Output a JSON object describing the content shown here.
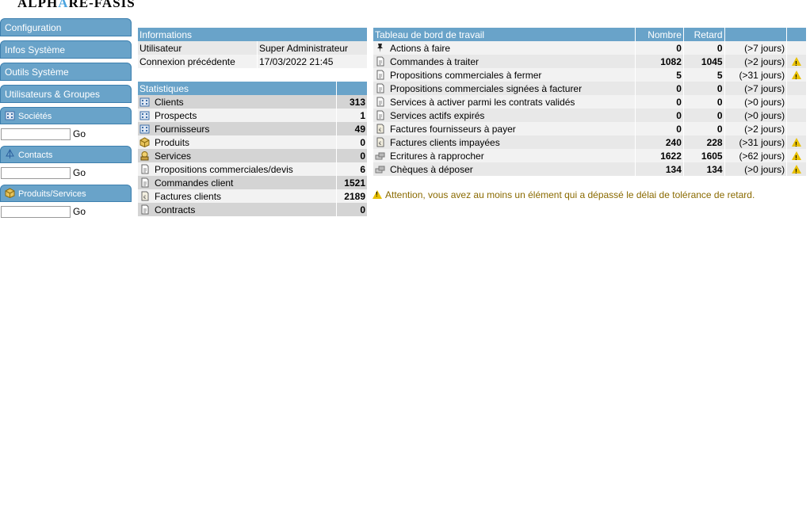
{
  "logo": {
    "part1": "ALPH",
    "part2": "A",
    "part3": "RE-FASIS"
  },
  "menu": {
    "configuration": "Configuration",
    "infos": "Infos Système",
    "outils": "Outils Système",
    "users": "Utilisateurs & Groupes",
    "societes": "Sociétés",
    "contacts": "Contacts",
    "produits": "Produits/Services",
    "go": "Go"
  },
  "info": {
    "header": "Informations",
    "user_label": "Utilisateur",
    "user_value": "Super Administrateur",
    "conn_label": "Connexion précédente",
    "conn_value": "17/03/2022 21:45"
  },
  "stats": {
    "header": "Statistiques",
    "rows": [
      {
        "label": "Clients",
        "value": "313",
        "icon": "building-icon"
      },
      {
        "label": "Prospects",
        "value": "1",
        "icon": "building-icon"
      },
      {
        "label": "Fournisseurs",
        "value": "49",
        "icon": "building-icon"
      },
      {
        "label": "Produits",
        "value": "0",
        "icon": "box-icon"
      },
      {
        "label": "Services",
        "value": "0",
        "icon": "service-icon"
      },
      {
        "label": "Propositions commerciales/devis",
        "value": "6",
        "icon": "document-icon"
      },
      {
        "label": "Commandes client",
        "value": "1521",
        "icon": "document-icon"
      },
      {
        "label": "Factures clients",
        "value": "2189",
        "icon": "invoice-icon"
      },
      {
        "label": "Contracts",
        "value": "0",
        "icon": "document-icon"
      }
    ]
  },
  "dashboard": {
    "header": "Tableau de bord de travail",
    "col_nombre": "Nombre",
    "col_retard": "Retard",
    "rows": [
      {
        "label": "Actions à faire",
        "nombre": "0",
        "retard": "0",
        "days": "(>7 jours)",
        "warn": false,
        "icon": "pin-icon"
      },
      {
        "label": "Commandes à traiter",
        "nombre": "1082",
        "retard": "1045",
        "days": "(>2 jours)",
        "warn": true,
        "icon": "document-icon"
      },
      {
        "label": "Propositions commerciales à fermer",
        "nombre": "5",
        "retard": "5",
        "days": "(>31 jours)",
        "warn": true,
        "icon": "document-icon"
      },
      {
        "label": "Propositions commerciales signées à facturer",
        "nombre": "0",
        "retard": "0",
        "days": "(>7 jours)",
        "warn": false,
        "icon": "document-icon"
      },
      {
        "label": "Services à activer parmi les contrats validés",
        "nombre": "0",
        "retard": "0",
        "days": "(>0 jours)",
        "warn": false,
        "icon": "document-icon"
      },
      {
        "label": "Services actifs expirés",
        "nombre": "0",
        "retard": "0",
        "days": "(>0 jours)",
        "warn": false,
        "icon": "document-icon"
      },
      {
        "label": "Factures fournisseurs à payer",
        "nombre": "0",
        "retard": "0",
        "days": "(>2 jours)",
        "warn": false,
        "icon": "invoice-icon"
      },
      {
        "label": "Factures clients impayées",
        "nombre": "240",
        "retard": "228",
        "days": "(>31 jours)",
        "warn": true,
        "icon": "invoice-icon"
      },
      {
        "label": "Ecritures à rapprocher",
        "nombre": "1622",
        "retard": "1605",
        "days": "(>62 jours)",
        "warn": true,
        "icon": "bank-icon"
      },
      {
        "label": "Chèques à déposer",
        "nombre": "134",
        "retard": "134",
        "days": "(>0 jours)",
        "warn": true,
        "icon": "bank-icon"
      }
    ]
  },
  "alert": "Attention, vous avez au moins un élément qui a dépassé le délai de tolérance de retard."
}
